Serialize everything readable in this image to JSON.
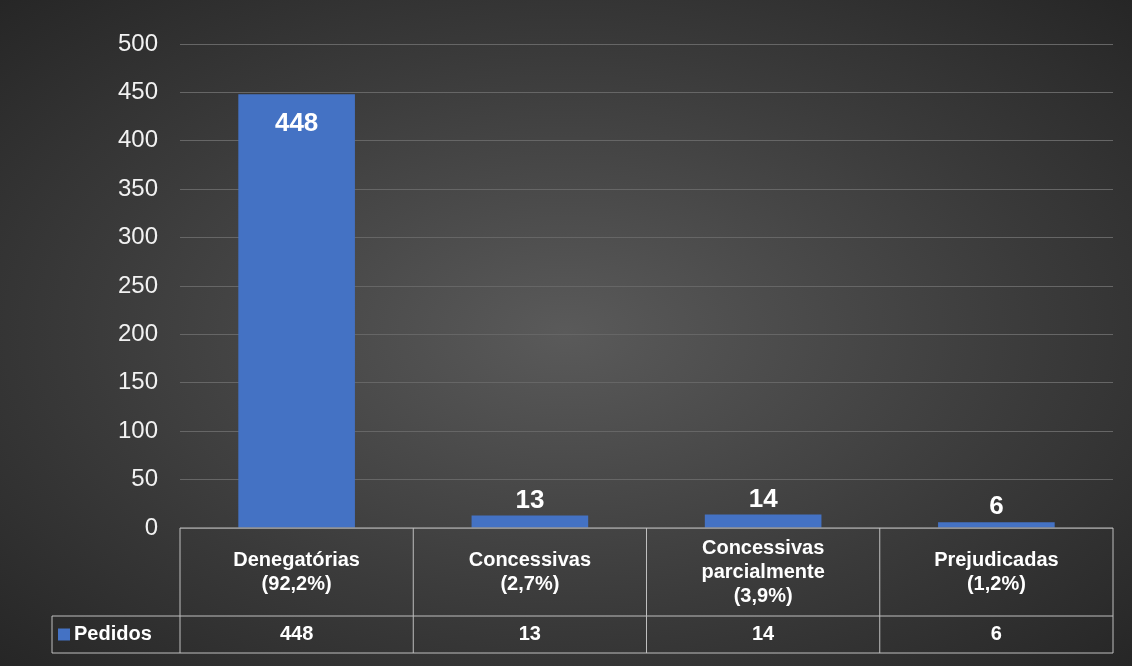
{
  "chart_data": {
    "type": "bar",
    "categories": [
      "Denegatórias (92,2%)",
      "Concessivas (2,7%)",
      "Concessivas parcialmente (3,9%)",
      "Prejudicadas (1,2%)"
    ],
    "series": [
      {
        "name": "Pedidos",
        "color": "#4472c4",
        "values": [
          448,
          13,
          14,
          6
        ],
        "value_labels": [
          "448",
          "13",
          "14",
          "6"
        ]
      }
    ],
    "ylim": [
      0,
      500
    ],
    "yticks": [
      0,
      50,
      100,
      150,
      200,
      250,
      300,
      350,
      400,
      450,
      500
    ],
    "grid": "y",
    "legend": "bottom",
    "annotations": [
      "448",
      "13",
      "14",
      "6"
    ]
  }
}
